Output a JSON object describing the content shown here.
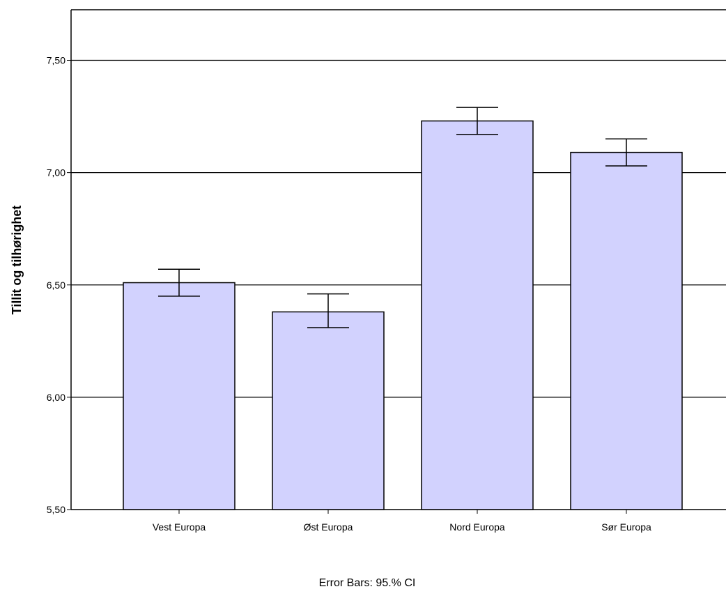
{
  "chart_data": {
    "type": "bar",
    "categories": [
      "Vest Europa",
      "Øst Europa",
      "Nord Europa",
      "Sør Europa"
    ],
    "values": [
      6.51,
      6.38,
      7.23,
      7.09
    ],
    "error_bars": [
      {
        "low": 6.45,
        "high": 6.57
      },
      {
        "low": 6.31,
        "high": 6.46
      },
      {
        "low": 7.17,
        "high": 7.29
      },
      {
        "low": 7.03,
        "high": 7.15
      }
    ],
    "title": "",
    "xlabel": "",
    "ylabel": "Tillit og tilhørighet",
    "ylim": [
      5.5,
      7.725
    ],
    "yticks": [
      5.5,
      6.0,
      6.5,
      7.0,
      7.5
    ],
    "ytick_labels": [
      "5,50",
      "6,00",
      "6,50",
      "7,00",
      "7,50"
    ],
    "grid": true,
    "bar_color": "#d2d2fe",
    "bar_edge_color": "#000000",
    "footnote": "Error Bars: 95.% CI"
  }
}
